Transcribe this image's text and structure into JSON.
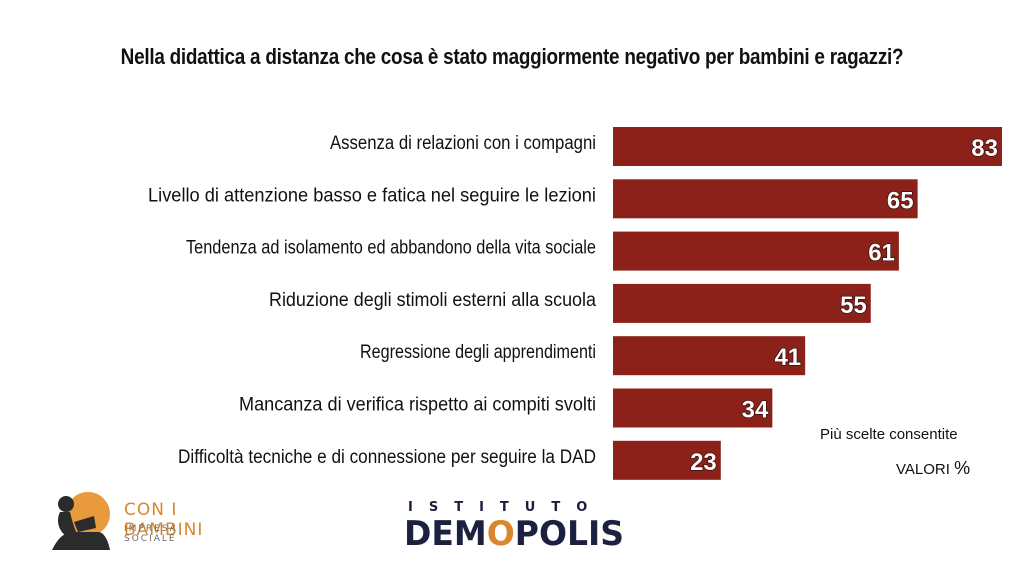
{
  "chart_data": {
    "type": "bar",
    "orientation": "horizontal",
    "title": "Nella didattica a distanza che cosa è stato maggiormente negativo per bambini e ragazzi?",
    "categories": [
      "Assenza di relazioni con i compagni",
      "Livello di attenzione basso e fatica nel seguire le lezioni",
      "Tendenza ad isolamento ed abbandono della vita sociale",
      "Riduzione degli stimoli esterni alla scuola",
      "Regressione degli apprendimenti",
      "Mancanza di verifica rispetto ai compiti svolti",
      "Difficoltà tecniche e di connessione per seguire la DAD"
    ],
    "values": [
      83,
      65,
      61,
      55,
      41,
      34,
      23
    ],
    "xlim": [
      0,
      83
    ],
    "grid": false,
    "bar_color": "#8b2119",
    "notes": [
      "Più scelte consentite",
      "VALORI",
      "%"
    ]
  },
  "logos": {
    "left": {
      "line1": "CON I BAMBINI",
      "line2": "IMPRESA SOCIALE"
    },
    "right": {
      "top": "ISTITUTO",
      "main_a": "DEM",
      "main_b": "O",
      "main_c": "POLIS"
    }
  }
}
